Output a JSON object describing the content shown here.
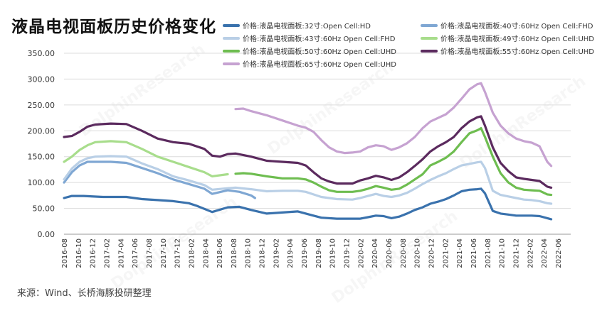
{
  "title": "液晶电视面板历史价格变化",
  "source": "来源：Wind、长桥海豚投研整理",
  "chart_data": {
    "type": "line",
    "ylim": [
      0,
      350
    ],
    "yticks": [
      "0.00",
      "50.00",
      "100.00",
      "150.00",
      "200.00",
      "250.00",
      "300.00",
      "350.00"
    ],
    "xticks": [
      "2016-08",
      "2016-10",
      "2016-12",
      "2017-02",
      "2017-04",
      "2017-06",
      "2017-08",
      "2017-10",
      "2017-12",
      "2018-02",
      "2018-04",
      "2018-06",
      "2018-08",
      "2018-10",
      "2018-12",
      "2019-02",
      "2019-04",
      "2019-06",
      "2019-08",
      "2019-10",
      "2019-12",
      "2020-02",
      "2020-04",
      "2020-06",
      "2020-08",
      "2020-10",
      "2020-12",
      "2021-02",
      "2021-04",
      "2021-06",
      "2021-08",
      "2021-10",
      "2021-12",
      "2022-02",
      "2022-04",
      "2022-06"
    ],
    "legend_position": "top-right",
    "series": [
      {
        "name": "价格:液晶电视面板:32寸:Open Cell:HD",
        "color": "#3a72ad",
        "points": [
          [
            0,
            70
          ],
          [
            2,
            74
          ],
          [
            5,
            74
          ],
          [
            10,
            72
          ],
          [
            16,
            72
          ],
          [
            20,
            68
          ],
          [
            24,
            66
          ],
          [
            28,
            64
          ],
          [
            32,
            60
          ],
          [
            34,
            55
          ],
          [
            38,
            43
          ],
          [
            42,
            52
          ],
          [
            45,
            53
          ],
          [
            48,
            47
          ],
          [
            52,
            40
          ],
          [
            56,
            42
          ],
          [
            60,
            44
          ],
          [
            64,
            36
          ],
          [
            66,
            32
          ],
          [
            70,
            30
          ],
          [
            74,
            30
          ],
          [
            76,
            30
          ],
          [
            78,
            33
          ],
          [
            80,
            36
          ],
          [
            82,
            35
          ],
          [
            84,
            31
          ],
          [
            86,
            34
          ],
          [
            88,
            40
          ],
          [
            90,
            47
          ],
          [
            92,
            52
          ],
          [
            94,
            59
          ],
          [
            96,
            63
          ],
          [
            98,
            68
          ],
          [
            100,
            75
          ],
          [
            102,
            83
          ],
          [
            104,
            86
          ],
          [
            106,
            87
          ],
          [
            107,
            88
          ],
          [
            108,
            79
          ],
          [
            110,
            45
          ],
          [
            112,
            40
          ],
          [
            114,
            38
          ],
          [
            116,
            36
          ],
          [
            120,
            36
          ],
          [
            122,
            35
          ],
          [
            124,
            31
          ],
          [
            125,
            29
          ]
        ]
      },
      {
        "name": "价格:液晶电视面板:40寸:60Hz Open Cell:FHD",
        "color": "#7fa7d3",
        "points": [
          [
            0,
            100
          ],
          [
            2,
            120
          ],
          [
            4,
            133
          ],
          [
            6,
            140
          ],
          [
            8,
            140
          ],
          [
            12,
            140
          ],
          [
            16,
            138
          ],
          [
            20,
            128
          ],
          [
            24,
            118
          ],
          [
            28,
            106
          ],
          [
            32,
            97
          ],
          [
            36,
            88
          ],
          [
            38,
            78
          ],
          [
            42,
            85
          ],
          [
            45,
            82
          ],
          [
            48,
            75
          ],
          [
            49,
            70
          ]
        ]
      },
      {
        "name": "价格:液晶电视面板:43寸:60Hz Open Cell:FHD",
        "color": "#b9cfe6",
        "points": [
          [
            0,
            106
          ],
          [
            2,
            127
          ],
          [
            4,
            140
          ],
          [
            6,
            147
          ],
          [
            8,
            150
          ],
          [
            12,
            151
          ],
          [
            16,
            150
          ],
          [
            20,
            137
          ],
          [
            24,
            126
          ],
          [
            28,
            112
          ],
          [
            32,
            104
          ],
          [
            36,
            95
          ],
          [
            38,
            86
          ],
          [
            42,
            89
          ],
          [
            44,
            90
          ],
          [
            48,
            87
          ],
          [
            52,
            83
          ],
          [
            56,
            84
          ],
          [
            60,
            84
          ],
          [
            62,
            82
          ],
          [
            64,
            77
          ],
          [
            66,
            72
          ],
          [
            70,
            68
          ],
          [
            74,
            67
          ],
          [
            76,
            70
          ],
          [
            78,
            74
          ],
          [
            80,
            78
          ],
          [
            82,
            74
          ],
          [
            84,
            72
          ],
          [
            86,
            75
          ],
          [
            88,
            80
          ],
          [
            90,
            88
          ],
          [
            92,
            97
          ],
          [
            94,
            105
          ],
          [
            96,
            112
          ],
          [
            98,
            118
          ],
          [
            100,
            126
          ],
          [
            102,
            133
          ],
          [
            104,
            136
          ],
          [
            106,
            139
          ],
          [
            107,
            140
          ],
          [
            108,
            128
          ],
          [
            110,
            84
          ],
          [
            112,
            76
          ],
          [
            114,
            73
          ],
          [
            116,
            70
          ],
          [
            118,
            67
          ],
          [
            120,
            66
          ],
          [
            122,
            64
          ],
          [
            124,
            60
          ],
          [
            125,
            59
          ]
        ]
      },
      {
        "name": "价格:液晶电视面板:49寸:60Hz Open Cell:UHD",
        "color": "#a8dd8c",
        "points": [
          [
            0,
            140
          ],
          [
            2,
            150
          ],
          [
            4,
            163
          ],
          [
            6,
            172
          ],
          [
            8,
            178
          ],
          [
            12,
            180
          ],
          [
            16,
            178
          ],
          [
            20,
            165
          ],
          [
            24,
            150
          ],
          [
            28,
            140
          ],
          [
            32,
            130
          ],
          [
            36,
            120
          ],
          [
            38,
            112
          ],
          [
            42,
            116
          ]
        ]
      },
      {
        "name": "价格:液晶电视面板:50寸:60Hz Open Cell:UHD",
        "color": "#6ebd50",
        "points": [
          [
            44,
            117
          ],
          [
            46,
            118
          ],
          [
            48,
            117
          ],
          [
            52,
            112
          ],
          [
            56,
            108
          ],
          [
            60,
            108
          ],
          [
            62,
            106
          ],
          [
            64,
            100
          ],
          [
            66,
            92
          ],
          [
            68,
            85
          ],
          [
            70,
            82
          ],
          [
            74,
            82
          ],
          [
            76,
            84
          ],
          [
            78,
            88
          ],
          [
            80,
            93
          ],
          [
            82,
            90
          ],
          [
            84,
            86
          ],
          [
            86,
            88
          ],
          [
            88,
            96
          ],
          [
            90,
            106
          ],
          [
            92,
            116
          ],
          [
            94,
            133
          ],
          [
            96,
            140
          ],
          [
            98,
            148
          ],
          [
            100,
            160
          ],
          [
            102,
            178
          ],
          [
            104,
            195
          ],
          [
            106,
            201
          ],
          [
            107,
            205
          ],
          [
            108,
            188
          ],
          [
            110,
            150
          ],
          [
            112,
            118
          ],
          [
            114,
            100
          ],
          [
            116,
            90
          ],
          [
            118,
            86
          ],
          [
            120,
            85
          ],
          [
            122,
            84
          ],
          [
            124,
            77
          ],
          [
            125,
            76
          ]
        ]
      },
      {
        "name": "价格:液晶电视面板:55寸:60Hz Open Cell:UHD",
        "color": "#5b2a5e",
        "points": [
          [
            0,
            188
          ],
          [
            2,
            190
          ],
          [
            4,
            198
          ],
          [
            6,
            208
          ],
          [
            8,
            212
          ],
          [
            12,
            214
          ],
          [
            16,
            213
          ],
          [
            20,
            200
          ],
          [
            24,
            185
          ],
          [
            28,
            178
          ],
          [
            32,
            175
          ],
          [
            36,
            165
          ],
          [
            38,
            152
          ],
          [
            40,
            150
          ],
          [
            42,
            155
          ],
          [
            44,
            156
          ],
          [
            48,
            150
          ],
          [
            52,
            142
          ],
          [
            56,
            140
          ],
          [
            60,
            138
          ],
          [
            62,
            133
          ],
          [
            64,
            120
          ],
          [
            66,
            108
          ],
          [
            68,
            102
          ],
          [
            70,
            98
          ],
          [
            74,
            98
          ],
          [
            76,
            104
          ],
          [
            78,
            108
          ],
          [
            80,
            113
          ],
          [
            82,
            110
          ],
          [
            84,
            105
          ],
          [
            86,
            110
          ],
          [
            88,
            120
          ],
          [
            90,
            132
          ],
          [
            92,
            145
          ],
          [
            94,
            160
          ],
          [
            96,
            170
          ],
          [
            98,
            178
          ],
          [
            100,
            188
          ],
          [
            102,
            205
          ],
          [
            104,
            218
          ],
          [
            106,
            226
          ],
          [
            107,
            228
          ],
          [
            108,
            210
          ],
          [
            110,
            168
          ],
          [
            112,
            138
          ],
          [
            114,
            122
          ],
          [
            116,
            110
          ],
          [
            118,
            107
          ],
          [
            120,
            105
          ],
          [
            122,
            103
          ],
          [
            124,
            92
          ],
          [
            125,
            90
          ]
        ]
      },
      {
        "name": "价格:液晶电视面板:65寸:60Hz Open Cell:UHD",
        "color": "#c6a2d1",
        "points": [
          [
            44,
            242
          ],
          [
            46,
            243
          ],
          [
            48,
            238
          ],
          [
            52,
            230
          ],
          [
            56,
            220
          ],
          [
            60,
            210
          ],
          [
            62,
            206
          ],
          [
            64,
            198
          ],
          [
            66,
            182
          ],
          [
            68,
            168
          ],
          [
            70,
            160
          ],
          [
            72,
            157
          ],
          [
            74,
            158
          ],
          [
            76,
            160
          ],
          [
            78,
            168
          ],
          [
            80,
            172
          ],
          [
            82,
            170
          ],
          [
            84,
            163
          ],
          [
            86,
            168
          ],
          [
            88,
            176
          ],
          [
            90,
            188
          ],
          [
            92,
            205
          ],
          [
            94,
            218
          ],
          [
            96,
            225
          ],
          [
            98,
            232
          ],
          [
            100,
            245
          ],
          [
            102,
            262
          ],
          [
            104,
            280
          ],
          [
            106,
            290
          ],
          [
            107,
            292
          ],
          [
            108,
            275
          ],
          [
            110,
            235
          ],
          [
            112,
            210
          ],
          [
            114,
            195
          ],
          [
            116,
            185
          ],
          [
            118,
            180
          ],
          [
            120,
            177
          ],
          [
            122,
            170
          ],
          [
            124,
            140
          ],
          [
            125,
            132
          ]
        ]
      }
    ]
  }
}
